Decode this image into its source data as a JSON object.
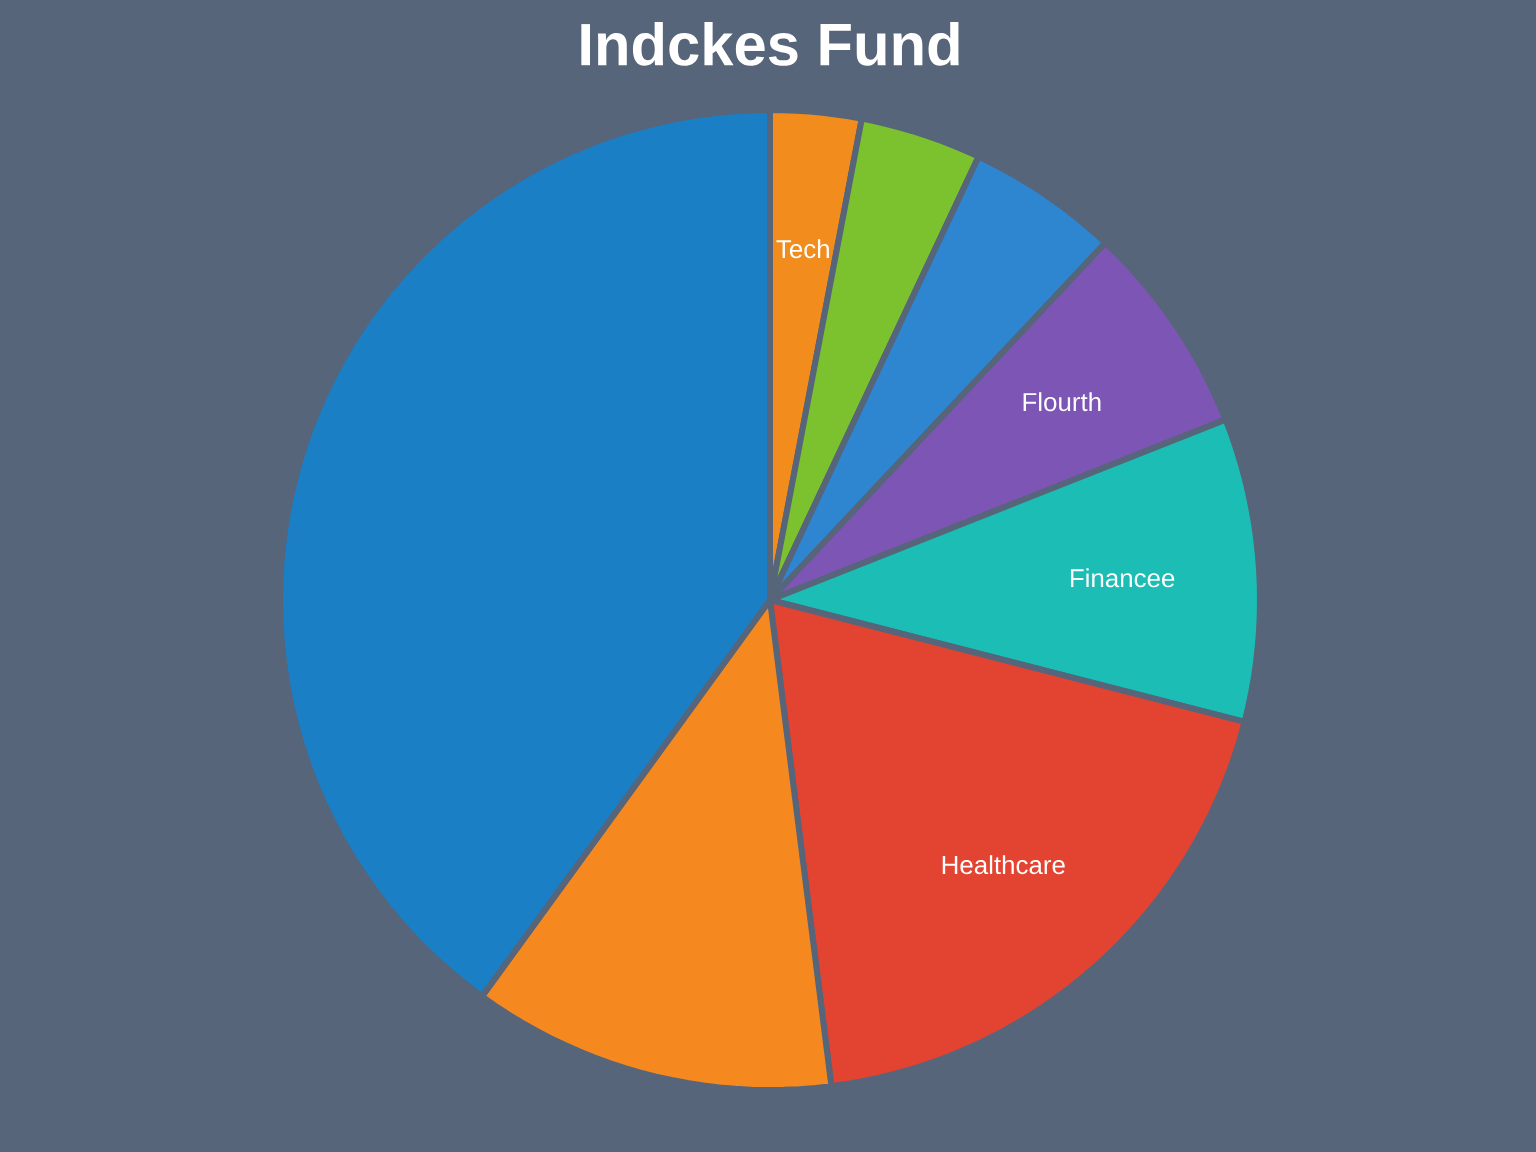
{
  "chart_data": {
    "type": "pie",
    "title": "Indckes Fund",
    "categories": [
      "Tech",
      null,
      null,
      "Flourth",
      "Financee",
      "Healthcare",
      null,
      null
    ],
    "values": [
      3,
      4,
      5,
      7,
      10,
      19,
      12,
      40
    ],
    "colors": [
      "#f28c1c",
      "#7cc22f",
      "#2f86d0",
      "#7d55b5",
      "#1bbdb5",
      "#e34431",
      "#f5891f",
      "#1a7fc4"
    ]
  }
}
